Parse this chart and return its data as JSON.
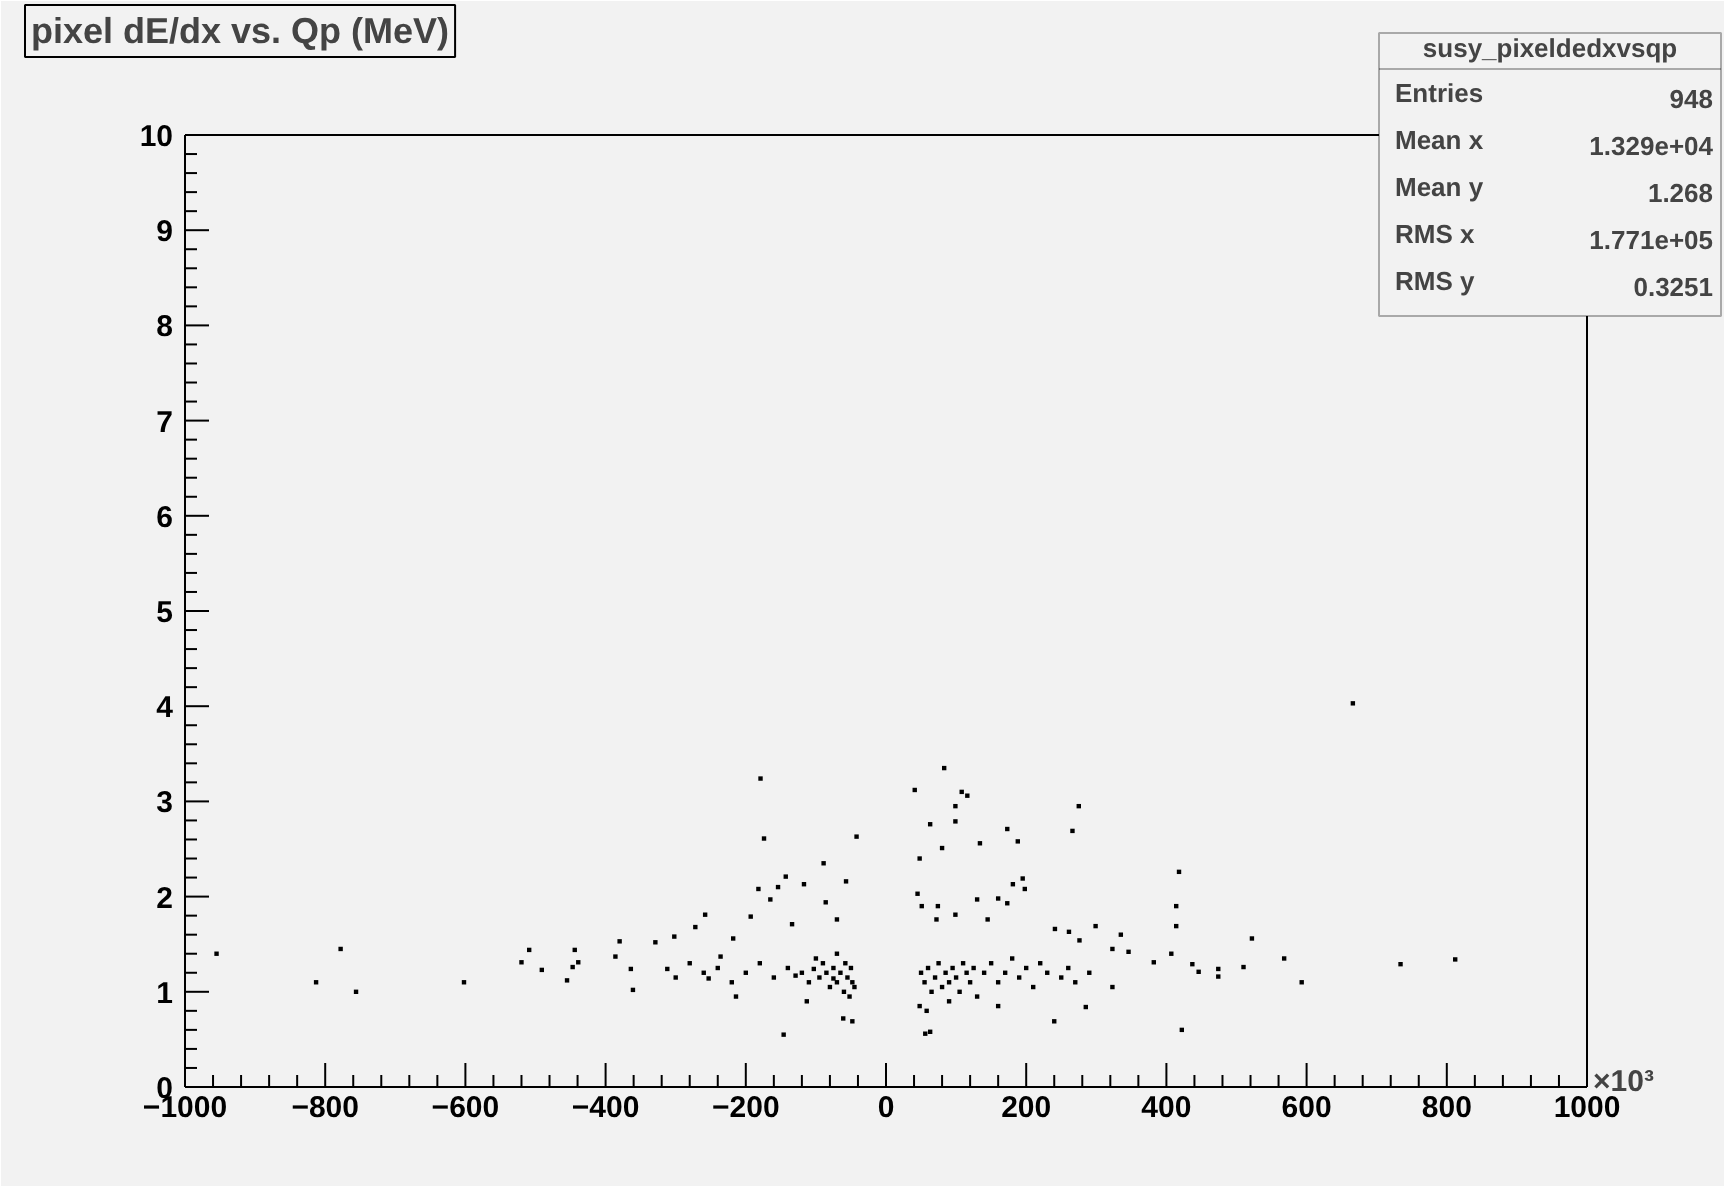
{
  "chart_data": {
    "type": "scatter",
    "title": "pixel dE/dx vs. Qp (MeV)",
    "annotations": [
      "×10³",
      "susy_pixeldedxvsqp",
      "Entries 948",
      "Mean x 1.329e+04",
      "Mean y 1.268",
      "RMS x 1.771e+05",
      "RMS y 0.3251"
    ],
    "xlim": [
      -1000,
      1000
    ],
    "ylim": [
      0,
      10
    ],
    "xticks": [
      -1000,
      -800,
      -600,
      -400,
      -200,
      0,
      200,
      400,
      600,
      800,
      1000
    ],
    "yticks": [
      0,
      1,
      2,
      3,
      4,
      5,
      6,
      7,
      8,
      9,
      10
    ],
    "grid": false,
    "marker": "square",
    "series": [
      {
        "color": "#000000",
        "x": [
          -955,
          -813,
          -778,
          -756,
          -602,
          -520,
          -509,
          -491,
          -455,
          -447,
          -444,
          -439,
          -386,
          -380,
          -364,
          -361,
          -329,
          -312,
          -302,
          -272,
          -258,
          -253,
          -236,
          -218,
          -214,
          -193,
          -182,
          -179,
          -174,
          -165,
          -154,
          -146,
          -143,
          -134,
          -129,
          -117,
          -113,
          -103,
          -89,
          -86,
          -75,
          -70,
          -61,
          -57,
          -48,
          -42,
          -95,
          -85,
          -80,
          -75,
          -70,
          -65,
          -60,
          -55,
          -50,
          -48,
          -52,
          -58,
          -90,
          -110,
          -120,
          -140,
          -160,
          -180,
          -200,
          -220,
          -240,
          -260,
          -280,
          -300,
          -70,
          -100,
          -45,
          666,
          83,
          41,
          108,
          116,
          99,
          275,
          99,
          63,
          173,
          266,
          134,
          188,
          80,
          48,
          418,
          195,
          181,
          198,
          45,
          160,
          130,
          173,
          51,
          74,
          414,
          99,
          145,
          72,
          414,
          241,
          299,
          335,
          522,
          261,
          276,
          323,
          346,
          382,
          407,
          437,
          446,
          474,
          474,
          510,
          568,
          593,
          734,
          812,
          422,
          240,
          285,
          56,
          63,
          323,
          50,
          55,
          60,
          65,
          70,
          75,
          80,
          85,
          90,
          95,
          100,
          105,
          110,
          115,
          120,
          125,
          130,
          140,
          150,
          160,
          170,
          180,
          190,
          200,
          210,
          220,
          230,
          250,
          260,
          270,
          290,
          48,
          58,
          90,
          160
        ],
        "values": [
          1.4,
          1.1,
          1.45,
          1.0,
          1.1,
          1.31,
          1.44,
          1.23,
          1.12,
          1.26,
          1.44,
          1.31,
          1.37,
          1.53,
          1.24,
          1.02,
          1.52,
          1.24,
          1.58,
          1.68,
          1.81,
          1.14,
          1.37,
          1.56,
          0.95,
          1.79,
          2.08,
          3.24,
          2.61,
          1.97,
          2.1,
          0.55,
          2.21,
          1.71,
          1.17,
          2.13,
          0.9,
          1.24,
          2.35,
          1.94,
          1.14,
          1.76,
          0.72,
          2.16,
          0.69,
          2.63,
          1.15,
          1.2,
          1.05,
          1.25,
          1.1,
          1.2,
          1.0,
          1.15,
          1.25,
          1.1,
          0.95,
          1.3,
          1.3,
          1.1,
          1.2,
          1.25,
          1.15,
          1.3,
          1.2,
          1.1,
          1.25,
          1.2,
          1.3,
          1.15,
          1.4,
          1.35,
          1.05,
          4.03,
          3.35,
          3.12,
          3.1,
          3.06,
          2.95,
          2.95,
          2.79,
          2.76,
          2.71,
          2.69,
          2.56,
          2.58,
          2.51,
          2.4,
          2.26,
          2.19,
          2.13,
          2.08,
          2.03,
          1.98,
          1.97,
          1.93,
          1.9,
          1.9,
          1.9,
          1.81,
          1.76,
          1.76,
          1.69,
          1.66,
          1.69,
          1.6,
          1.56,
          1.63,
          1.54,
          1.45,
          1.42,
          1.31,
          1.4,
          1.29,
          1.21,
          1.24,
          1.16,
          1.26,
          1.35,
          1.1,
          1.29,
          1.34,
          0.6,
          0.69,
          0.84,
          0.56,
          0.58,
          1.05,
          1.2,
          1.1,
          1.25,
          1.0,
          1.15,
          1.3,
          1.05,
          1.2,
          1.1,
          1.25,
          1.15,
          1.0,
          1.3,
          1.2,
          1.1,
          1.25,
          0.95,
          1.2,
          1.3,
          1.1,
          1.2,
          1.35,
          1.15,
          1.25,
          1.05,
          1.3,
          1.2,
          1.15,
          1.25,
          1.1,
          1.2,
          0.85,
          0.8,
          0.9,
          0.85
        ]
      }
    ]
  }
}
